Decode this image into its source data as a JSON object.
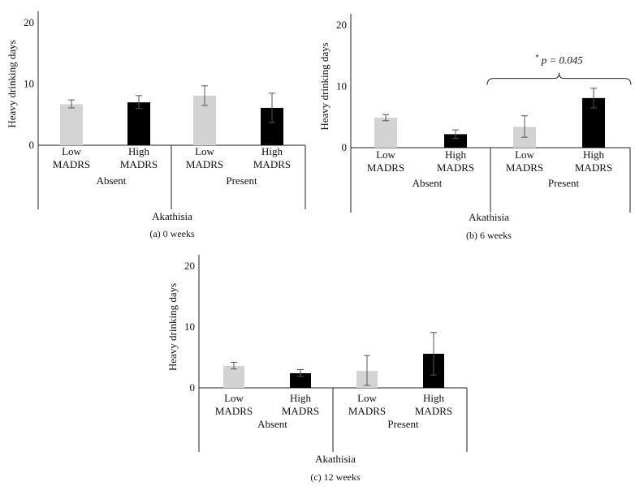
{
  "chart_data": [
    {
      "type": "bar",
      "caption": "(a)  0 weeks",
      "ylabel": "Heavy drinking days",
      "xlabel": "Akathisia",
      "ylim": [
        0,
        20
      ],
      "yticks": [
        "0",
        "10",
        "20"
      ],
      "groups": [
        "Absent",
        "Present"
      ],
      "categories": [
        {
          "line1": "Low",
          "line2": "MADRS",
          "group": "Absent"
        },
        {
          "line1": "High",
          "line2": "MADRS",
          "group": "Absent"
        },
        {
          "line1": "Low",
          "line2": "MADRS",
          "group": "Present"
        },
        {
          "line1": "High",
          "line2": "MADRS",
          "group": "Present"
        }
      ],
      "values": [
        6.7,
        7.0,
        8.1,
        6.1
      ],
      "error_low": [
        6.1,
        6.0,
        6.5,
        3.7
      ],
      "error_high": [
        7.4,
        8.1,
        9.7,
        8.5
      ],
      "colors": [
        "#d3d3d3",
        "#000000",
        "#d3d3d3",
        "#000000"
      ],
      "annotation": null
    },
    {
      "type": "bar",
      "caption": "(b)  6 weeks",
      "ylabel": "Heavy drinking days",
      "xlabel": "Akathisia",
      "ylim": [
        0,
        20
      ],
      "yticks": [
        "0",
        "10",
        "20"
      ],
      "groups": [
        "Absent",
        "Present"
      ],
      "categories": [
        {
          "line1": "Low",
          "line2": "MADRS",
          "group": "Absent"
        },
        {
          "line1": "High",
          "line2": "MADRS",
          "group": "Absent"
        },
        {
          "line1": "Low",
          "line2": "MADRS",
          "group": "Present"
        },
        {
          "line1": "High",
          "line2": "MADRS",
          "group": "Present"
        }
      ],
      "values": [
        4.9,
        2.2,
        3.4,
        8.1
      ],
      "error_low": [
        4.4,
        1.5,
        1.7,
        6.5
      ],
      "error_high": [
        5.4,
        2.9,
        5.2,
        9.7
      ],
      "colors": [
        "#d3d3d3",
        "#000000",
        "#d3d3d3",
        "#000000"
      ],
      "annotation": {
        "star": "*",
        "text": "p = 0.045",
        "bracket_from": 2,
        "bracket_to": 3,
        "at_value": 11.3
      }
    },
    {
      "type": "bar",
      "caption": "(c)  12 weeks",
      "ylabel": "Heavy drinking days",
      "xlabel": "Akathisia",
      "ylim": [
        0,
        20
      ],
      "yticks": [
        "0",
        "10",
        "20"
      ],
      "groups": [
        "Absent",
        "Present"
      ],
      "categories": [
        {
          "line1": "Low",
          "line2": "MADRS",
          "group": "Absent"
        },
        {
          "line1": "High",
          "line2": "MADRS",
          "group": "Absent"
        },
        {
          "line1": "Low",
          "line2": "MADRS",
          "group": "Present"
        },
        {
          "line1": "High",
          "line2": "MADRS",
          "group": "Present"
        }
      ],
      "values": [
        3.6,
        2.4,
        2.8,
        5.6
      ],
      "error_low": [
        3.1,
        1.9,
        0.4,
        2.1
      ],
      "error_high": [
        4.2,
        3.0,
        5.3,
        9.1
      ],
      "colors": [
        "#d3d3d3",
        "#000000",
        "#d3d3d3",
        "#000000"
      ],
      "annotation": null
    }
  ]
}
